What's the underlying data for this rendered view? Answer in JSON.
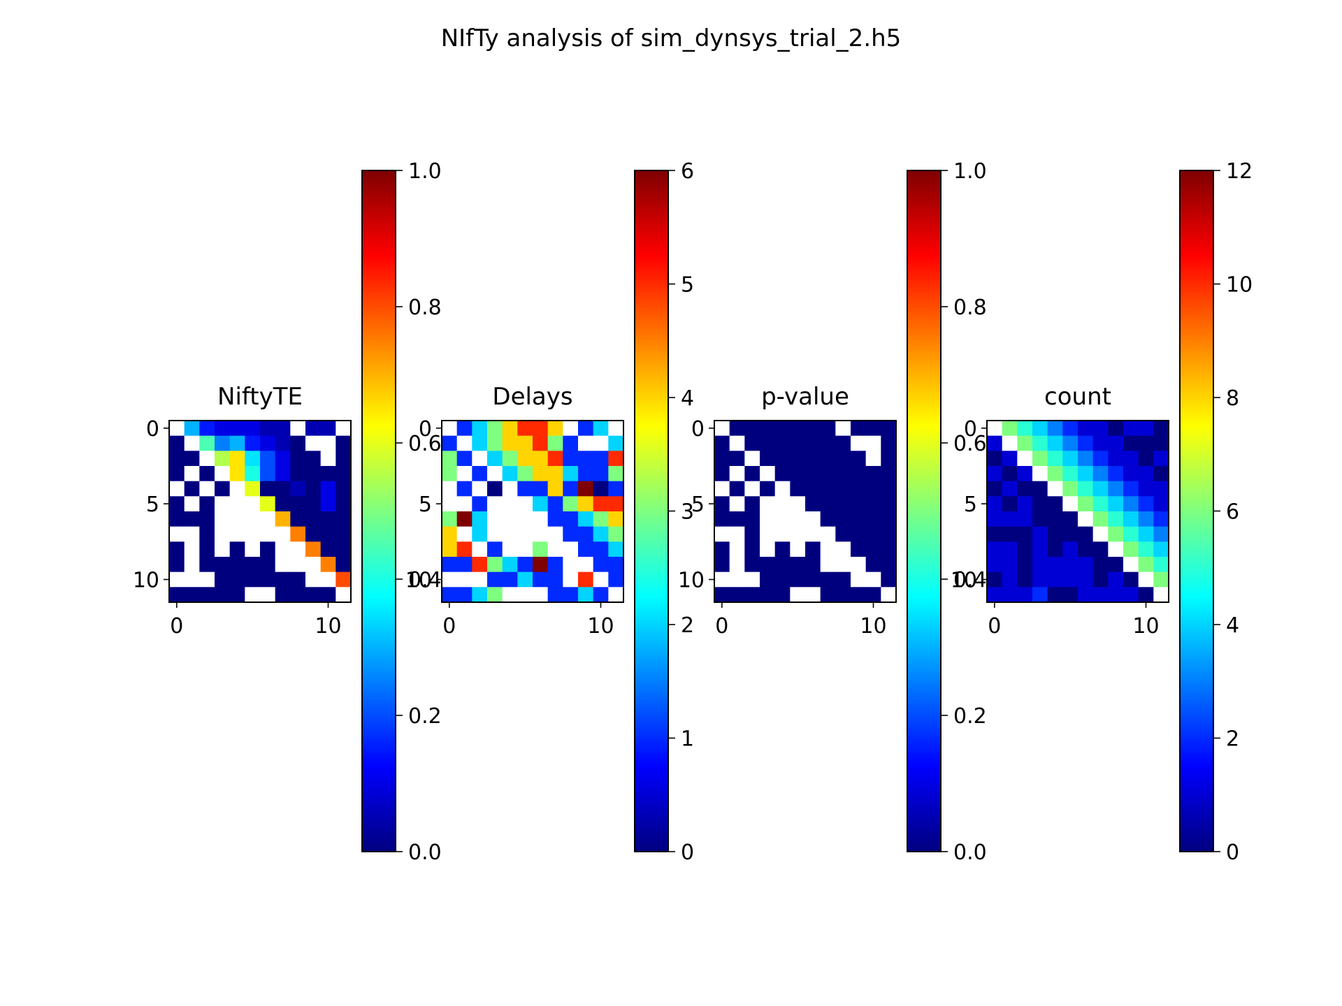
{
  "figure": {
    "title": "NIfTy analysis of sim_dynsys_trial_2.h5"
  },
  "colormap": {
    "name": "jet",
    "stops": [
      "#00007f",
      "#0000ff",
      "#007fff",
      "#00ffff",
      "#7fff7f",
      "#ffff00",
      "#ff7f00",
      "#ff0000",
      "#7f0000"
    ],
    "missing_color": "#ffffff"
  },
  "chart_data": [
    {
      "type": "heatmap",
      "title": "NiftyTE",
      "x_ticks": [
        0,
        10
      ],
      "y_ticks": [
        0,
        5,
        10
      ],
      "colorbar": {
        "range": [
          0,
          1
        ],
        "ticks": [
          "0.0",
          "0.2",
          "0.4",
          "0.6",
          "0.8",
          "1.0"
        ]
      },
      "values": [
        [
          null,
          0.3,
          0.15,
          0.1,
          0.1,
          0.1,
          0.05,
          0.05,
          null,
          0.05,
          0.05,
          null
        ],
        [
          0,
          null,
          0.45,
          0.25,
          0.3,
          0.15,
          0.1,
          0.05,
          0,
          null,
          null,
          0
        ],
        [
          0,
          0,
          null,
          0.55,
          0.65,
          0.35,
          0.2,
          0.1,
          0,
          0,
          null,
          0
        ],
        [
          0,
          null,
          0,
          null,
          0.65,
          0.4,
          0.2,
          0.1,
          0,
          0,
          0,
          0
        ],
        [
          null,
          0,
          null,
          0,
          null,
          0.6,
          0,
          0,
          0.05,
          0,
          0.1,
          0
        ],
        [
          0,
          null,
          0,
          null,
          null,
          null,
          0.6,
          0,
          0,
          0,
          0.1,
          0
        ],
        [
          0,
          0,
          0,
          null,
          null,
          null,
          null,
          0.7,
          0,
          0,
          0,
          0
        ],
        [
          null,
          null,
          0,
          null,
          null,
          null,
          null,
          null,
          0.75,
          0,
          0,
          0
        ],
        [
          0,
          null,
          0,
          null,
          0,
          null,
          0,
          null,
          null,
          0.75,
          0,
          0
        ],
        [
          0,
          null,
          0,
          0,
          0,
          0,
          0,
          null,
          null,
          null,
          0.75,
          0
        ],
        [
          null,
          null,
          null,
          0,
          0,
          0,
          0,
          0,
          0,
          null,
          null,
          0.8
        ],
        [
          0,
          0,
          0,
          0,
          0,
          null,
          null,
          0,
          0,
          0,
          0,
          null
        ]
      ]
    },
    {
      "type": "heatmap",
      "title": "Delays",
      "x_ticks": [
        0,
        10
      ],
      "y_ticks": [
        0,
        5,
        10
      ],
      "colorbar": {
        "range": [
          0,
          6
        ],
        "ticks": [
          "0",
          "1",
          "2",
          "3",
          "4",
          "5",
          "6"
        ]
      },
      "values": [
        [
          null,
          1,
          2,
          3,
          4,
          5,
          5,
          4,
          null,
          1,
          2,
          null
        ],
        [
          1,
          null,
          2,
          3,
          4,
          4,
          5,
          3,
          1,
          null,
          null,
          2
        ],
        [
          3,
          1,
          null,
          2,
          3,
          4,
          4,
          5,
          1,
          1,
          1,
          5
        ],
        [
          3,
          null,
          1,
          null,
          2,
          3,
          4,
          4,
          2,
          1,
          1,
          3
        ],
        [
          null,
          1,
          null,
          0,
          null,
          1,
          1,
          4,
          1,
          6,
          0,
          1
        ],
        [
          null,
          null,
          1,
          null,
          null,
          null,
          2,
          1,
          3,
          4,
          5,
          5
        ],
        [
          3,
          6,
          2,
          null,
          null,
          null,
          null,
          1,
          1,
          2,
          3,
          4
        ],
        [
          4,
          null,
          2,
          null,
          null,
          null,
          null,
          null,
          1,
          1,
          2,
          3
        ],
        [
          4,
          5,
          null,
          1,
          null,
          null,
          3,
          null,
          null,
          1,
          1,
          2
        ],
        [
          1,
          1,
          5,
          3,
          2,
          1,
          6,
          1,
          null,
          null,
          1,
          1
        ],
        [
          null,
          null,
          null,
          1,
          1,
          2,
          1,
          1,
          null,
          5,
          null,
          1
        ],
        [
          1,
          1,
          2,
          3,
          null,
          null,
          null,
          1,
          1,
          2,
          1,
          null
        ]
      ]
    },
    {
      "type": "heatmap",
      "title": "p-value",
      "x_ticks": [
        0,
        10
      ],
      "y_ticks": [
        0,
        5,
        10
      ],
      "colorbar": {
        "range": [
          0,
          1
        ],
        "ticks": [
          "0.0",
          "0.2",
          "0.4",
          "0.6",
          "0.8",
          "1.0"
        ]
      },
      "values": [
        [
          null,
          0,
          0,
          0,
          0,
          0,
          0,
          0,
          null,
          0,
          0,
          0
        ],
        [
          0,
          null,
          0,
          0,
          0,
          0,
          0,
          0,
          0,
          null,
          null,
          0
        ],
        [
          0,
          0,
          null,
          0,
          0,
          0,
          0,
          0,
          0,
          0,
          null,
          0
        ],
        [
          0,
          null,
          0,
          null,
          0,
          0,
          0,
          0,
          0,
          0,
          0,
          0
        ],
        [
          null,
          0,
          null,
          0,
          null,
          0,
          0,
          0,
          0,
          0,
          0,
          0
        ],
        [
          0,
          null,
          0,
          null,
          null,
          null,
          0,
          0,
          0,
          0,
          0,
          0
        ],
        [
          0,
          0,
          0,
          null,
          null,
          null,
          null,
          0,
          0,
          0,
          0,
          0
        ],
        [
          null,
          null,
          0,
          null,
          null,
          null,
          null,
          null,
          0,
          0,
          0,
          0
        ],
        [
          0,
          null,
          0,
          null,
          0,
          null,
          0,
          null,
          null,
          0,
          0,
          0
        ],
        [
          0,
          null,
          0,
          0,
          0,
          0,
          0,
          null,
          null,
          null,
          0,
          0
        ],
        [
          null,
          null,
          null,
          0,
          0,
          0,
          0,
          0,
          0,
          null,
          null,
          0
        ],
        [
          0,
          0,
          0,
          0,
          0,
          null,
          null,
          0,
          0,
          0,
          0,
          null
        ]
      ]
    },
    {
      "type": "heatmap",
      "title": "count",
      "x_ticks": [
        0,
        10
      ],
      "y_ticks": [
        0,
        5,
        10
      ],
      "colorbar": {
        "range": [
          0,
          12
        ],
        "ticks": [
          "0",
          "2",
          "4",
          "6",
          "8",
          "10",
          "12"
        ]
      },
      "values": [
        [
          null,
          6,
          5,
          4,
          3,
          2,
          1,
          1,
          0,
          1,
          1,
          0
        ],
        [
          1,
          null,
          6,
          5,
          4,
          3,
          2,
          1,
          1,
          0,
          0,
          0
        ],
        [
          0,
          1,
          null,
          6,
          5,
          4,
          3,
          2,
          1,
          1,
          0,
          1
        ],
        [
          1,
          0,
          1,
          null,
          6,
          5,
          4,
          3,
          2,
          1,
          1,
          0
        ],
        [
          0,
          1,
          0,
          0,
          null,
          6,
          5,
          4,
          3,
          2,
          1,
          1
        ],
        [
          1,
          0,
          1,
          0,
          0,
          null,
          6,
          5,
          4,
          3,
          2,
          1
        ],
        [
          1,
          1,
          1,
          0,
          0,
          0,
          null,
          6,
          5,
          4,
          3,
          2
        ],
        [
          0,
          0,
          0,
          1,
          0,
          0,
          0,
          null,
          6,
          5,
          4,
          3
        ],
        [
          1,
          1,
          0,
          1,
          0,
          1,
          0,
          0,
          null,
          6,
          5,
          4
        ],
        [
          1,
          1,
          0,
          1,
          1,
          1,
          1,
          0,
          0,
          null,
          6,
          5
        ],
        [
          0,
          1,
          0,
          1,
          1,
          1,
          1,
          0,
          1,
          0,
          null,
          6
        ],
        [
          1,
          1,
          1,
          2,
          0,
          0,
          1,
          1,
          1,
          1,
          0,
          null
        ]
      ]
    }
  ]
}
